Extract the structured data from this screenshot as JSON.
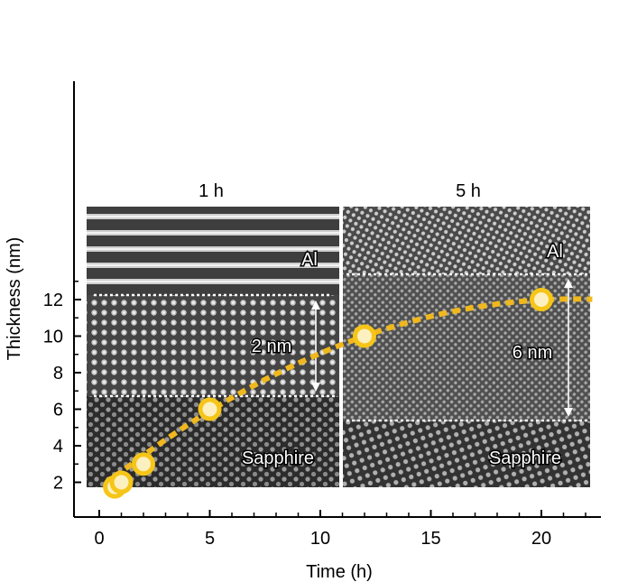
{
  "chart_data": {
    "type": "scatter",
    "xlabel": "Time (h)",
    "ylabel": "Thickness (nm)",
    "xlim": [
      -1.2,
      22.5
    ],
    "ylim": [
      1.2,
      13
    ],
    "x_ticks": [
      0,
      5,
      10,
      15,
      20
    ],
    "y_ticks": [
      2,
      4,
      6,
      8,
      10,
      12
    ],
    "x_tick_labels": [
      "0",
      "5",
      "10",
      "15",
      "20"
    ],
    "y_tick_labels": [
      "2",
      "4",
      "6",
      "8",
      "10",
      "12"
    ],
    "grid": false,
    "series": [
      {
        "points": [
          {
            "x": 0.7,
            "y": 1.75
          },
          {
            "x": 1,
            "y": 2
          },
          {
            "x": 2,
            "y": 3
          },
          {
            "x": 5,
            "y": 6
          },
          {
            "x": 12,
            "y": 10
          },
          {
            "x": 20,
            "y": 12
          }
        ],
        "marker_color": "#f5c518",
        "fill_color": "#fdf0c0"
      }
    ],
    "fit_curve": {
      "style": "dashed",
      "color": "#f0b81e",
      "x_range": [
        0.7,
        22.3
      ],
      "vertex_x": 21.5,
      "vertex_y": 12.03,
      "a": -0.0225
    },
    "insets": [
      {
        "title": "1 h",
        "top_label": "Al",
        "bottom_label": "Sapphire",
        "interlayer_label": "2 nm"
      },
      {
        "title": "5 h",
        "top_label": "Al",
        "bottom_label": "Sapphire",
        "interlayer_label": "6 nm"
      }
    ]
  }
}
